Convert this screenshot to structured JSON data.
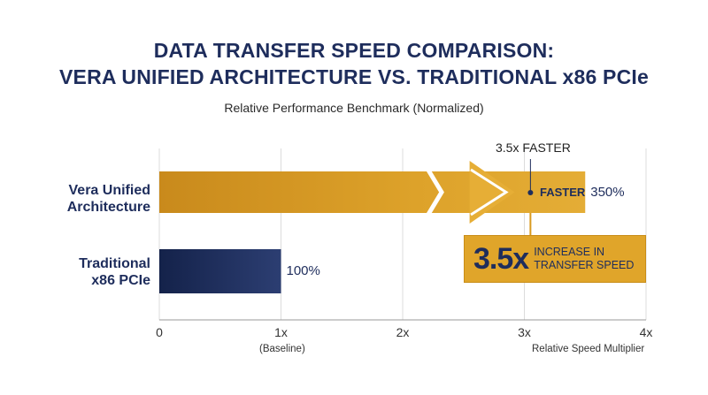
{
  "chart_data": {
    "type": "bar",
    "orientation": "horizontal",
    "title_lines": [
      "DATA TRANSFER SPEED COMPARISON:",
      "VERA UNIFIED ARCHITECTURE VS. TRADITIONAL x86 PCIe"
    ],
    "subtitle": "Relative Performance Benchmark (Normalized)",
    "categories": [
      "Vera Unified Architecture",
      "Traditional x86 PCIe"
    ],
    "category_label_lines": [
      [
        "Vera Unified",
        "Architecture"
      ],
      [
        "Traditional",
        "x86 PCIe"
      ]
    ],
    "values": [
      3.5,
      1.0
    ],
    "value_labels": [
      "350%",
      "100%"
    ],
    "x_ticks": [
      0,
      1,
      2,
      3,
      4
    ],
    "x_tick_labels": [
      "0",
      "1x",
      "2x",
      "3x",
      "4x"
    ],
    "xlim": [
      0,
      4
    ],
    "baseline_label": "(Baseline)",
    "xlabel": "Relative Speed Multiplier",
    "grid": true,
    "colors": {
      "vera_bar": "#d99a20",
      "pcie_bar": "#1e2d5c",
      "callout_bg": "#e0a52a",
      "text_dark": "#1e2d5c"
    },
    "annotations": {
      "top_callout": "3.5x FASTER",
      "inline_label": "FASTER",
      "box_big": "3.5x",
      "box_text_lines": [
        "INCREASE IN",
        "TRANSFER SPEED"
      ]
    }
  }
}
